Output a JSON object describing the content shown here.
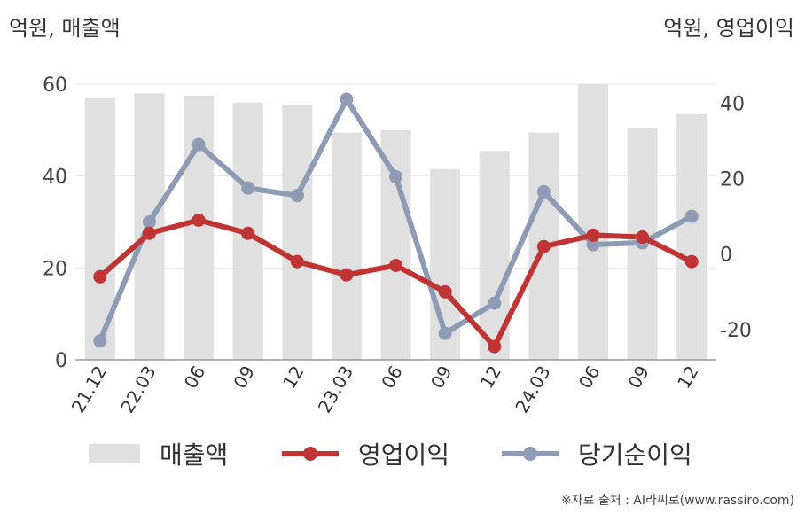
{
  "header": {
    "unit_left": "억원, 매출액",
    "unit_right": "억원, 영업이익"
  },
  "footer": {
    "source": "※자료 출처 : AI라씨로(www.rassiro.com)"
  },
  "colors": {
    "revenue": "#e0e0e0",
    "operating": "#c03434",
    "net": "#8e9bb5"
  },
  "chart_data": {
    "type": "bar",
    "categories": [
      "21.12",
      "22.03",
      "06",
      "09",
      "12",
      "23.03",
      "06",
      "09",
      "12",
      "24.03",
      "06",
      "09",
      "12"
    ],
    "left_axis": {
      "label": "억원, 매출액",
      "ylim": [
        0,
        60
      ],
      "ticks": [
        0,
        20,
        40,
        60
      ]
    },
    "right_axis": {
      "label": "억원, 영업이익",
      "ylim": [
        -28,
        45
      ],
      "ticks": [
        -20,
        0,
        20,
        40
      ]
    },
    "series": [
      {
        "name": "매출액",
        "type": "bar",
        "axis": "left",
        "values": [
          57,
          58,
          57.5,
          56,
          55.5,
          49.5,
          50,
          41.5,
          45.5,
          49.5,
          60,
          50.5,
          53.5
        ]
      },
      {
        "name": "영업이익",
        "type": "line",
        "axis": "right",
        "values": [
          -6,
          5.5,
          9,
          5.5,
          -2,
          -5.5,
          -3,
          -10,
          -24.5,
          2,
          5,
          4.5,
          -2
        ]
      },
      {
        "name": "당기순이익",
        "type": "line",
        "axis": "right",
        "values": [
          -23,
          8.5,
          29,
          17.5,
          15.5,
          41,
          20.5,
          -21,
          -13,
          16.5,
          2.5,
          3,
          10
        ]
      }
    ],
    "grid": true,
    "legend": "bottom"
  }
}
